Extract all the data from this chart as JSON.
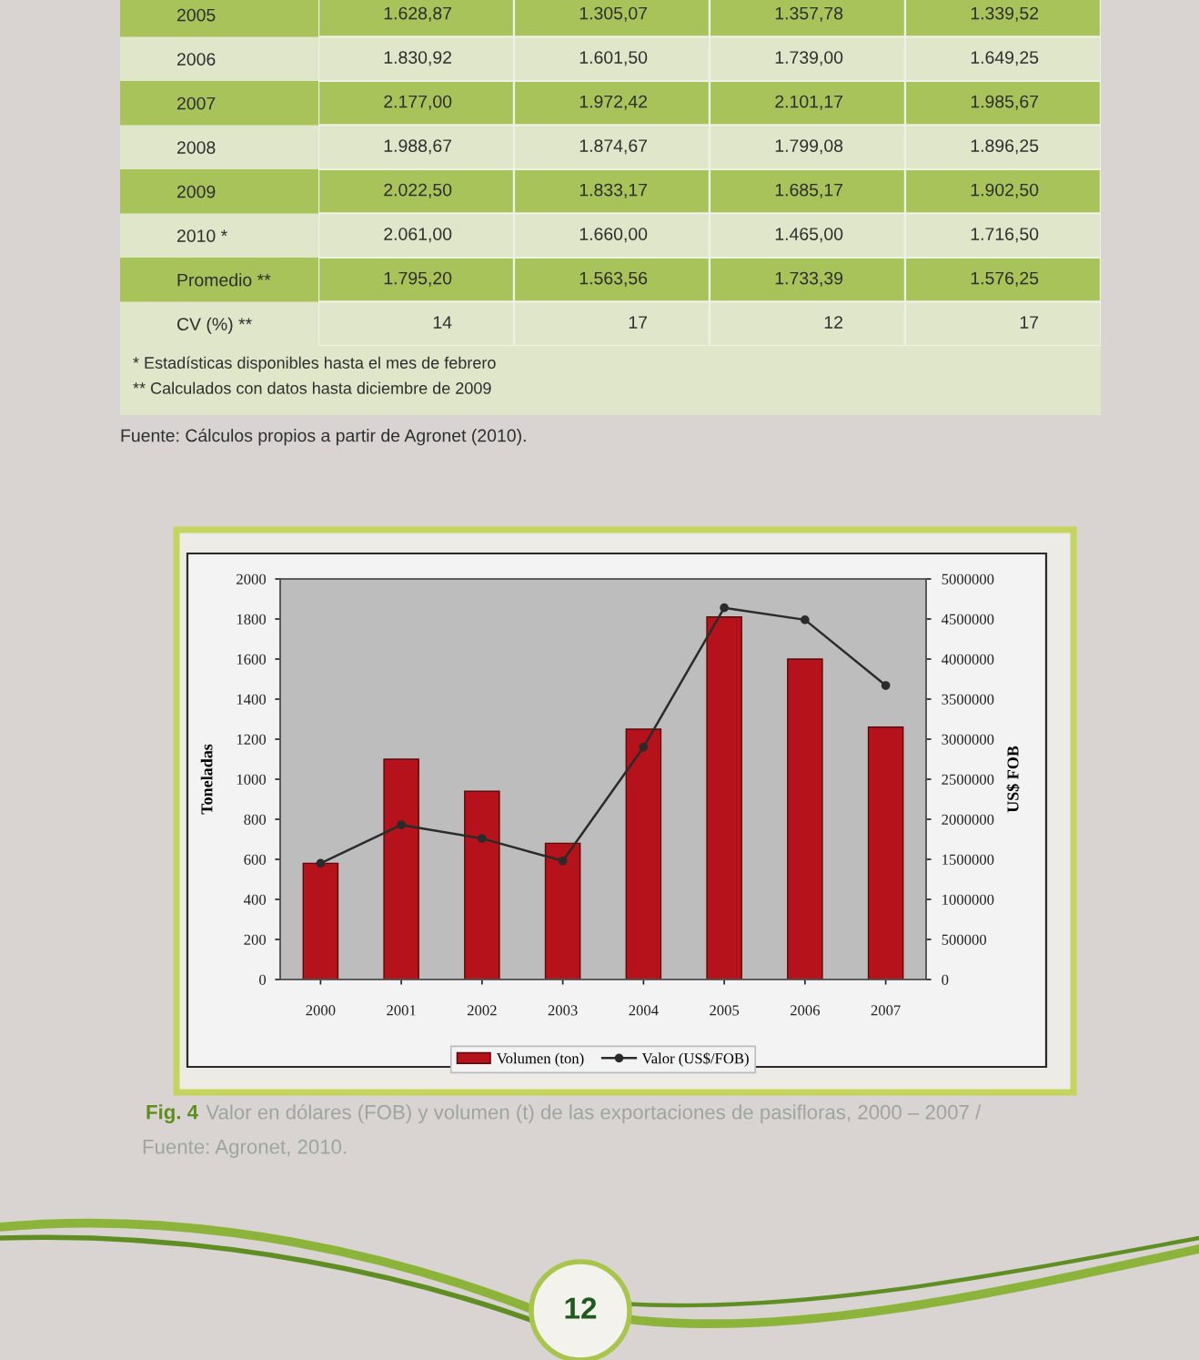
{
  "chart_data": [
    {
      "type": "heatmap",
      "categories": [
        null,
        null,
        null,
        null
      ],
      "y_categories": [
        "2005",
        "2006",
        "2007",
        "2008",
        "2009",
        "2010 *",
        "Promedio **",
        "CV (%) **"
      ],
      "cells": [
        [
          1628.87,
          1305.07,
          1357.78,
          1339.52
        ],
        [
          1830.92,
          1601.5,
          1739.0,
          1649.25
        ],
        [
          2177.0,
          1972.42,
          2101.17,
          1985.67
        ],
        [
          1988.67,
          1874.67,
          1799.08,
          1896.25
        ],
        [
          2022.5,
          1833.17,
          1685.17,
          1902.5
        ],
        [
          2061.0,
          1660.0,
          1465.0,
          1716.5
        ],
        [
          1795.2,
          1563.56,
          1733.39,
          1576.25
        ],
        [
          14,
          17,
          12,
          17
        ]
      ],
      "cell_labels": [
        [
          "1.628,87",
          "1.305,07",
          "1.357,78",
          "1.339,52"
        ],
        [
          "1.830,92",
          "1.601,50",
          "1.739,00",
          "1.649,25"
        ],
        [
          "2.177,00",
          "1.972,42",
          "2.101,17",
          "1.985,67"
        ],
        [
          "1.988,67",
          "1.874,67",
          "1.799,08",
          "1.896,25"
        ],
        [
          "2.022,50",
          "1.833,17",
          "1.685,17",
          "1.902,50"
        ],
        [
          "2.061,00",
          "1.660,00",
          "1.465,00",
          "1.716,50"
        ],
        [
          "1.795,20",
          "1.563,56",
          "1.733,39",
          "1.576,25"
        ],
        [
          "14",
          "17",
          "12",
          "17"
        ]
      ],
      "annotations": [
        "* Estadísticas disponibles hasta el mes de febrero",
        "** Calculados con datos hasta diciembre de 2009",
        "Fuente: Cálculos propios a partir de Agronet (2010)."
      ]
    },
    {
      "type": "bar",
      "categories": [
        "2000",
        "2001",
        "2002",
        "2003",
        "2004",
        "2005",
        "2006",
        "2007"
      ],
      "series": [
        {
          "name": "Volumen (ton)",
          "color": "#b5121b",
          "values": [
            580,
            1100,
            940,
            680,
            1250,
            1810,
            1600,
            1260
          ]
        },
        {
          "name": "Valor (US$/FOB)",
          "type": "line",
          "axis": "y2",
          "color": "#2b2b2b",
          "values": [
            1450000,
            1930000,
            1760000,
            1480000,
            2900000,
            4640000,
            4490000,
            3670000
          ]
        }
      ],
      "ylabel": "Toneladas",
      "y2label": "US$ FOB",
      "ylim": [
        0,
        2000
      ],
      "yticks": [
        0,
        200,
        400,
        600,
        800,
        1000,
        1200,
        1400,
        1600,
        1800,
        2000
      ],
      "y2lim": [
        0,
        5000000
      ],
      "y2ticks": [
        0,
        500000,
        1000000,
        1500000,
        2000000,
        2500000,
        3000000,
        3500000,
        4000000,
        4500000,
        5000000
      ],
      "marker": "circle",
      "legend": "bottom",
      "annotations": [
        "Fig. 4",
        "Valor en dólares (FOB) y volumen (t) de las exportaciones de pasifloras, 2000 – 2007 /",
        "Fuente: Agronet, 2010.",
        "12"
      ]
    }
  ]
}
